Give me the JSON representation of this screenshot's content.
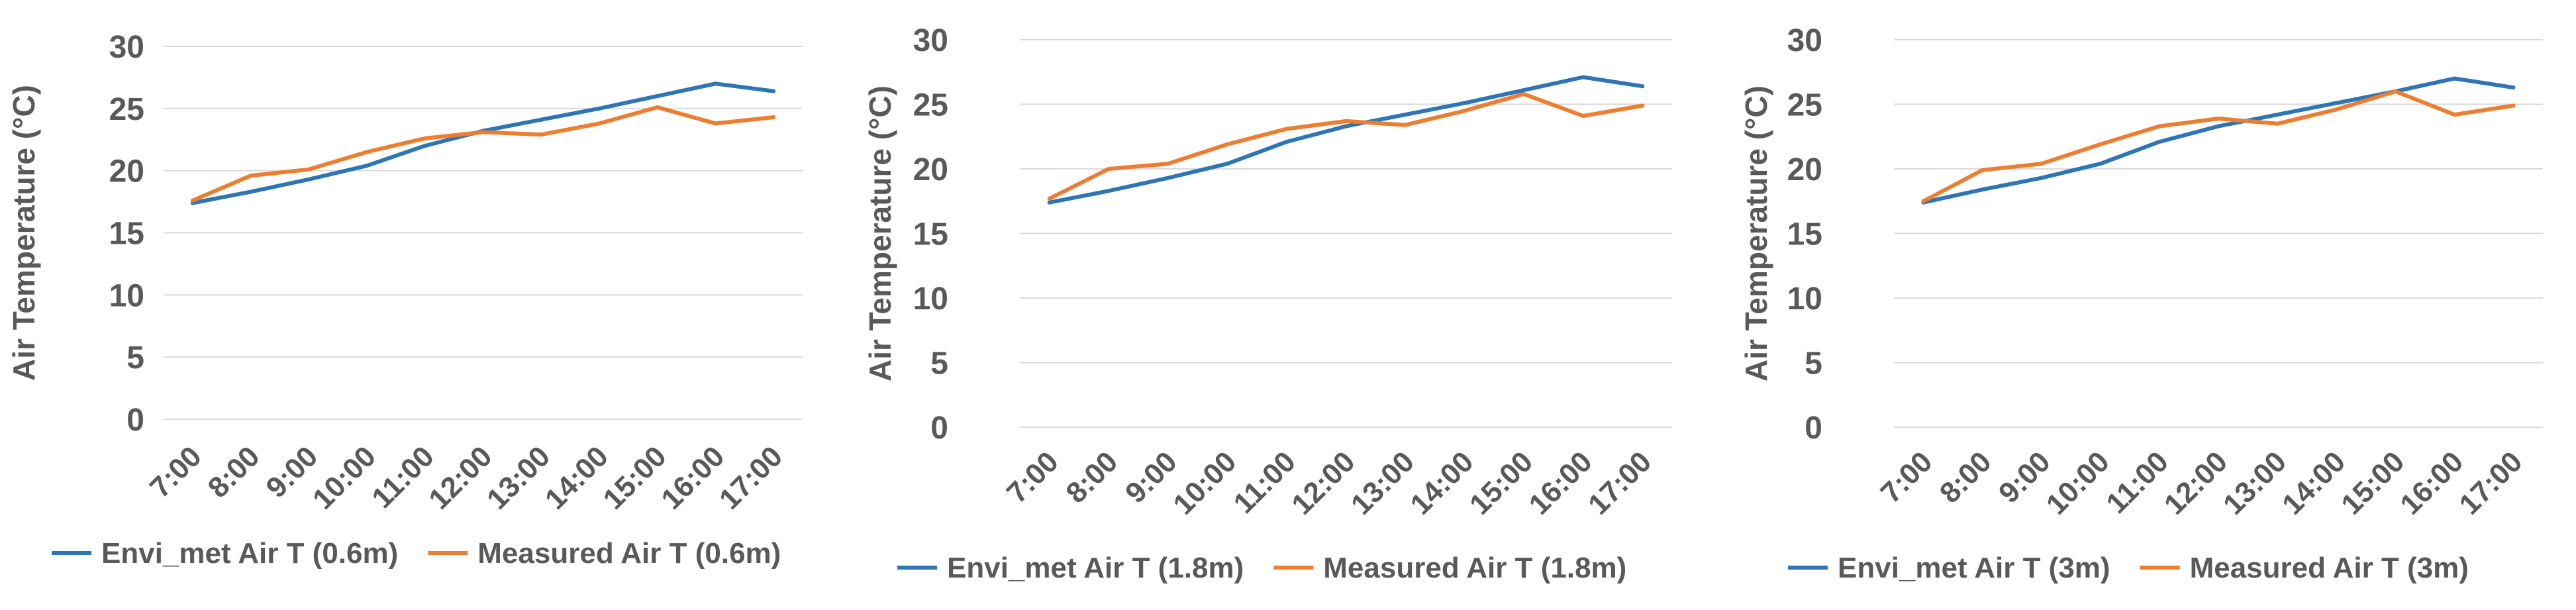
{
  "chart_data": [
    {
      "type": "line",
      "title": "",
      "xlabel": "",
      "ylabel": "Air Temperature (°C)",
      "ylim": [
        0,
        30
      ],
      "yticks": [
        "0",
        "5",
        "10",
        "15",
        "20",
        "25",
        "30"
      ],
      "categories": [
        "7:00",
        "8:00",
        "9:00",
        "10:00",
        "11:00",
        "12:00",
        "13:00",
        "14:00",
        "15:00",
        "16:00",
        "17:00"
      ],
      "series": [
        {
          "name": "Envi_met Air T (0.6m)",
          "color": "#2e75b6",
          "values": [
            17.4,
            18.3,
            19.3,
            20.4,
            22.0,
            23.2,
            24.1,
            25.0,
            26.0,
            27.0,
            26.4
          ]
        },
        {
          "name": "Measured Air T (0.6m)",
          "color": "#ed7d31",
          "values": [
            17.6,
            19.6,
            20.1,
            21.5,
            22.6,
            23.1,
            22.9,
            23.8,
            25.1,
            23.8,
            24.3
          ]
        }
      ],
      "legend": "bottom"
    },
    {
      "type": "line",
      "title": "",
      "xlabel": "",
      "ylabel": "Air Temperature (°C)",
      "ylim": [
        0,
        30
      ],
      "yticks": [
        "0",
        "5",
        "10",
        "15",
        "20",
        "25",
        "30"
      ],
      "categories": [
        "7:00",
        "8:00",
        "9:00",
        "10:00",
        "11:00",
        "12:00",
        "13:00",
        "14:00",
        "15:00",
        "16:00",
        "17:00"
      ],
      "series": [
        {
          "name": "Envi_met Air T (1.8m)",
          "color": "#2e75b6",
          "values": [
            17.4,
            18.3,
            19.3,
            20.4,
            22.1,
            23.3,
            24.2,
            25.1,
            26.1,
            27.1,
            26.4
          ]
        },
        {
          "name": "Measured Air T (1.8m)",
          "color": "#ed7d31",
          "values": [
            17.7,
            20.0,
            20.4,
            21.9,
            23.1,
            23.7,
            23.4,
            24.5,
            25.8,
            24.1,
            24.9
          ]
        }
      ],
      "legend": "bottom"
    },
    {
      "type": "line",
      "title": "",
      "xlabel": "",
      "ylabel": "Air Temperature (°C)",
      "ylim": [
        0,
        30
      ],
      "yticks": [
        "0",
        "5",
        "10",
        "15",
        "20",
        "25",
        "30"
      ],
      "categories": [
        "7:00",
        "8:00",
        "9:00",
        "10:00",
        "11:00",
        "12:00",
        "13:00",
        "14:00",
        "15:00",
        "16:00",
        "17:00"
      ],
      "series": [
        {
          "name": "Envi_met Air T (3m)",
          "color": "#2e75b6",
          "values": [
            17.4,
            18.4,
            19.3,
            20.4,
            22.1,
            23.3,
            24.2,
            25.1,
            26.0,
            27.0,
            26.3
          ]
        },
        {
          "name": "Measured Air T (3m)",
          "color": "#ed7d31",
          "values": [
            17.5,
            19.9,
            20.4,
            21.9,
            23.3,
            23.9,
            23.5,
            24.6,
            26.0,
            24.2,
            24.9
          ]
        }
      ],
      "legend": "bottom"
    }
  ]
}
